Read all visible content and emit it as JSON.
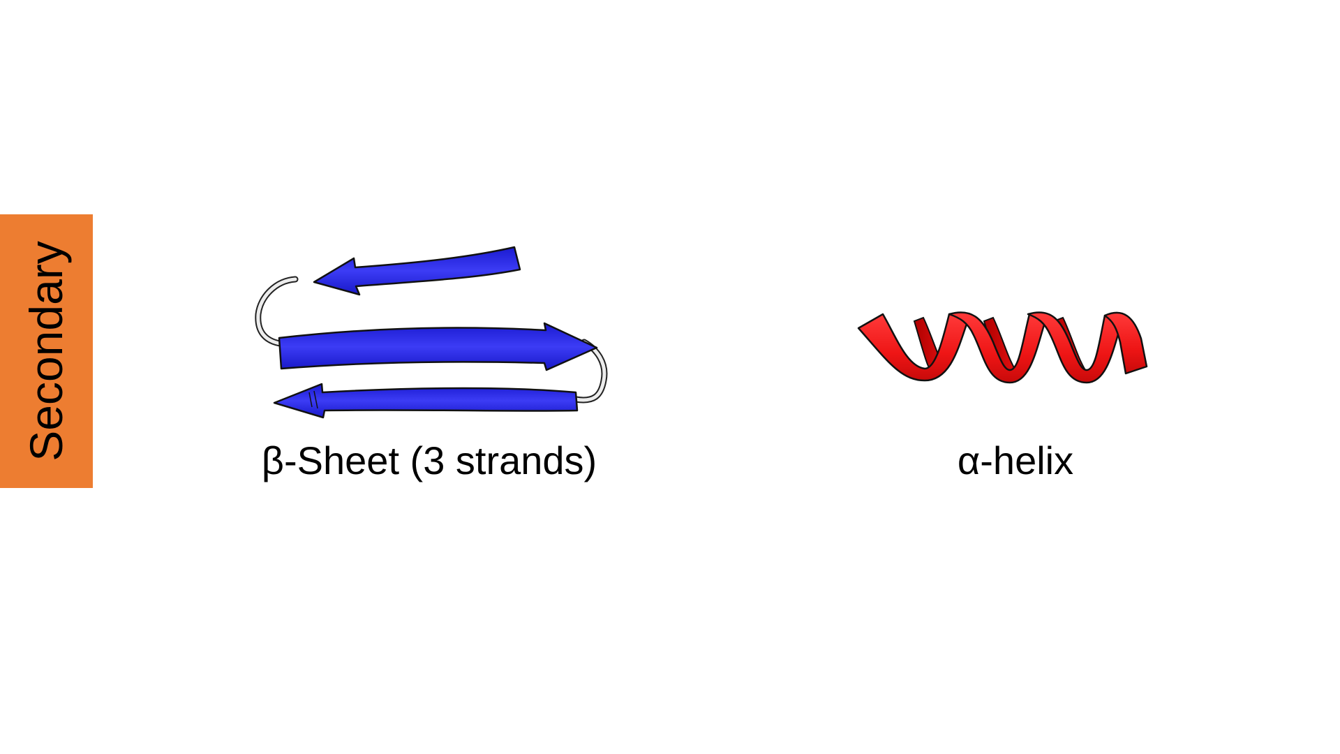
{
  "side_tab": {
    "label": "Secondary",
    "color": "#ED7D31"
  },
  "structures": [
    {
      "caption": "β-Sheet (3 strands)",
      "color": "#2222E0",
      "loop_color": "#E8E8E8"
    },
    {
      "caption": "α-helix",
      "color": "#F01E1E"
    }
  ]
}
